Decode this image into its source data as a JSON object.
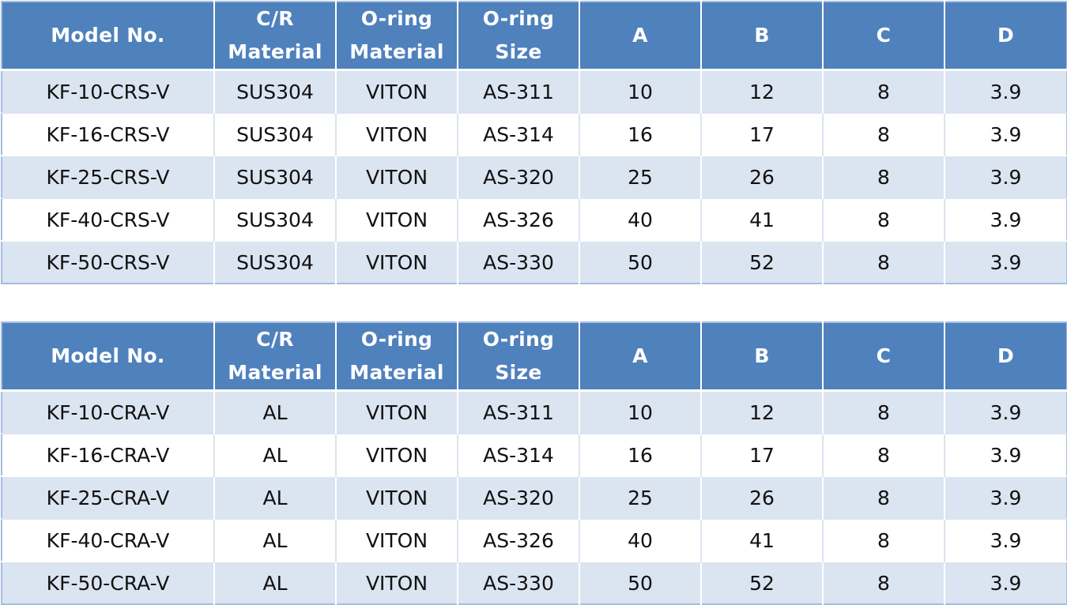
{
  "colors": {
    "header_bg": "#4f81bd",
    "header_text": "#ffffff",
    "band_row_bg": "#dbe4f1",
    "plain_row_bg": "#ffffff",
    "outer_border": "#a3bde1"
  },
  "tables": [
    {
      "headers": [
        [
          "Model No."
        ],
        [
          "C/R",
          "Material"
        ],
        [
          "O-ring",
          "Material"
        ],
        [
          "O-ring",
          "Size"
        ],
        [
          "A"
        ],
        [
          "B"
        ],
        [
          "C"
        ],
        [
          "D"
        ]
      ],
      "rows": [
        [
          "KF-10-CRS-V",
          "SUS304",
          "VITON",
          "AS-311",
          "10",
          "12",
          "8",
          "3.9"
        ],
        [
          "KF-16-CRS-V",
          "SUS304",
          "VITON",
          "AS-314",
          "16",
          "17",
          "8",
          "3.9"
        ],
        [
          "KF-25-CRS-V",
          "SUS304",
          "VITON",
          "AS-320",
          "25",
          "26",
          "8",
          "3.9"
        ],
        [
          "KF-40-CRS-V",
          "SUS304",
          "VITON",
          "AS-326",
          "40",
          "41",
          "8",
          "3.9"
        ],
        [
          "KF-50-CRS-V",
          "SUS304",
          "VITON",
          "AS-330",
          "50",
          "52",
          "8",
          "3.9"
        ]
      ]
    },
    {
      "headers": [
        [
          "Model No."
        ],
        [
          "C/R",
          "Material"
        ],
        [
          "O-ring",
          "Material"
        ],
        [
          "O-ring",
          "Size"
        ],
        [
          "A"
        ],
        [
          "B"
        ],
        [
          "C"
        ],
        [
          "D"
        ]
      ],
      "rows": [
        [
          "KF-10-CRA-V",
          "AL",
          "VITON",
          "AS-311",
          "10",
          "12",
          "8",
          "3.9"
        ],
        [
          "KF-16-CRA-V",
          "AL",
          "VITON",
          "AS-314",
          "16",
          "17",
          "8",
          "3.9"
        ],
        [
          "KF-25-CRA-V",
          "AL",
          "VITON",
          "AS-320",
          "25",
          "26",
          "8",
          "3.9"
        ],
        [
          "KF-40-CRA-V",
          "AL",
          "VITON",
          "AS-326",
          "40",
          "41",
          "8",
          "3.9"
        ],
        [
          "KF-50-CRA-V",
          "AL",
          "VITON",
          "AS-330",
          "50",
          "52",
          "8",
          "3.9"
        ]
      ]
    }
  ]
}
